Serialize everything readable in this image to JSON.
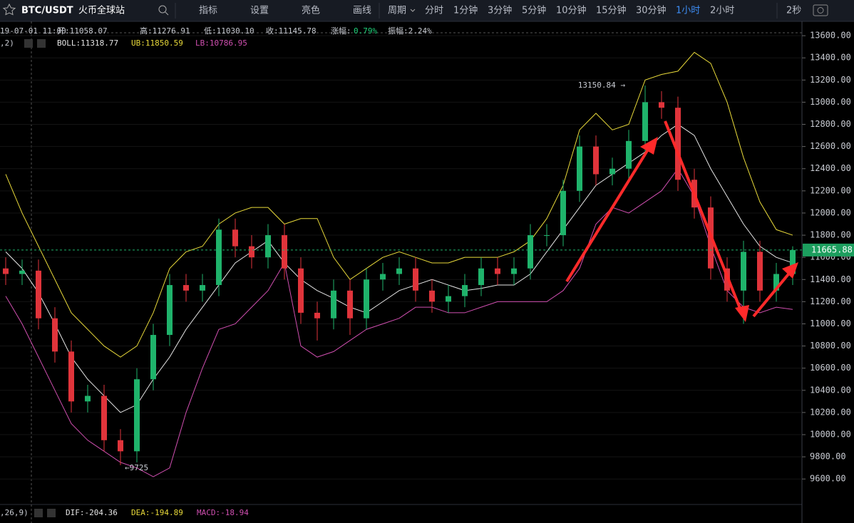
{
  "toolbar": {
    "symbol": "BTC/USDT",
    "exchange": "火币全球站",
    "tools": [
      "指标",
      "设置",
      "亮色",
      "画线"
    ],
    "period_label": "周期",
    "periods": [
      "分时",
      "1分钟",
      "3分钟",
      "5分钟",
      "10分钟",
      "15分钟",
      "30分钟",
      "1小时",
      "2小时"
    ],
    "active_period": "1小时",
    "refresh": "2秒"
  },
  "info": {
    "time": "19-07-01 11:00",
    "open": "开:11058.07",
    "high": "高:11276.91",
    "low": "低:11030.10",
    "close": "收:11145.78",
    "change_label": "涨幅:",
    "change": "0.79%",
    "amplitude": "振幅:2.24%"
  },
  "boll_legend": {
    "params": ",2)",
    "boll": "BOLL:11318.77",
    "ub": "UB:11850.59",
    "lb": "LB:10786.95"
  },
  "macd_legend": {
    "params": ",26,9)",
    "dif": "DIF:-204.36",
    "dea": "DEA:-194.89",
    "macd": "MACD:-18.94"
  },
  "chart": {
    "type": "candlestick",
    "open": [
      11500,
      11450,
      11480,
      11050,
      10750,
      10300,
      10350,
      9950,
      9850,
      10500,
      10900,
      11350,
      11300,
      11350,
      11850,
      11700,
      11600,
      11800,
      11500,
      11100,
      11050,
      11300,
      11050,
      11400,
      11450,
      11500,
      11300,
      11200,
      11250,
      11350,
      11500,
      11450,
      11500,
      11800,
      11800,
      12200,
      12600,
      12350,
      12400,
      12650,
      13000,
      12950,
      12300,
      12050,
      11500,
      11300,
      11650,
      11300,
      11450
    ],
    "high": [
      11600,
      11580,
      11580,
      11150,
      10850,
      10450,
      10450,
      10050,
      10600,
      11000,
      11450,
      11450,
      11450,
      11950,
      11950,
      11800,
      11900,
      11900,
      11600,
      11200,
      11400,
      11400,
      11500,
      11550,
      11600,
      11600,
      11400,
      11350,
      11450,
      11600,
      11600,
      11600,
      11900,
      11900,
      12300,
      12700,
      12700,
      12500,
      12750,
      13150.84,
      13100,
      13050,
      12400,
      12150,
      11600,
      11750,
      11750,
      11550,
      11700
    ],
    "low": [
      11350,
      11350,
      10950,
      10650,
      10200,
      10200,
      9850,
      9725,
      9750,
      10400,
      10800,
      11200,
      11200,
      11250,
      11600,
      11500,
      11500,
      11400,
      11000,
      10850,
      10950,
      10900,
      10950,
      11300,
      11350,
      11200,
      11100,
      11100,
      11150,
      11250,
      11350,
      11350,
      11400,
      11700,
      11700,
      12100,
      12250,
      12250,
      12300,
      12550,
      12850,
      12200,
      11950,
      11400,
      11200,
      11000,
      11200,
      11200,
      11350
    ],
    "close": [
      11450,
      11480,
      11050,
      10750,
      10300,
      10350,
      9950,
      9850,
      10500,
      10900,
      11350,
      11300,
      11350,
      11850,
      11700,
      11600,
      11800,
      11500,
      11100,
      11050,
      11300,
      11050,
      11400,
      11450,
      11500,
      11300,
      11200,
      11250,
      11350,
      11500,
      11450,
      11500,
      11800,
      11800,
      12200,
      12600,
      12350,
      12400,
      12650,
      13000,
      12950,
      12300,
      12050,
      11500,
      11300,
      11650,
      11300,
      11450,
      11665.88
    ],
    "series": [
      {
        "name": "BOLL",
        "color": "#e6e6e6",
        "values": [
          11650,
          11500,
          11280,
          11000,
          10700,
          10500,
          10350,
          10200,
          10270,
          10500,
          10700,
          10950,
          11150,
          11350,
          11550,
          11650,
          11750,
          11550,
          11400,
          11300,
          11230,
          11150,
          11100,
          11200,
          11300,
          11350,
          11400,
          11350,
          11300,
          11320,
          11350,
          11350,
          11450,
          11650,
          11850,
          12050,
          12250,
          12350,
          12450,
          12550,
          12700,
          12800,
          12700,
          12400,
          12150,
          11900,
          11700,
          11600,
          11550
        ]
      },
      {
        "name": "UB",
        "color": "#e8d93a",
        "values": [
          12350,
          12000,
          11700,
          11400,
          11100,
          10950,
          10800,
          10700,
          10800,
          11100,
          11500,
          11650,
          11700,
          11900,
          12000,
          12050,
          12050,
          11900,
          11950,
          11950,
          11600,
          11400,
          11500,
          11600,
          11650,
          11600,
          11550,
          11550,
          11600,
          11600,
          11600,
          11650,
          11750,
          11950,
          12250,
          12750,
          12900,
          12750,
          12800,
          13200,
          13250,
          13280,
          13450,
          13350,
          13000,
          12500,
          12100,
          11850,
          11800
        ]
      },
      {
        "name": "LB",
        "color": "#d04fb0",
        "values": [
          11250,
          11000,
          10700,
          10400,
          10100,
          9950,
          9850,
          9750,
          9700,
          9620,
          9700,
          10200,
          10600,
          10950,
          11000,
          11150,
          11300,
          11550,
          10800,
          10700,
          10750,
          10850,
          10950,
          11000,
          11050,
          11150,
          11150,
          11100,
          11100,
          11150,
          11200,
          11200,
          11200,
          11200,
          11300,
          11500,
          11900,
          12050,
          12000,
          12100,
          12200,
          12400,
          12150,
          11700,
          11300,
          11150,
          11100,
          11150,
          11130
        ]
      }
    ],
    "up_color": "#1fb36b",
    "down_color": "#e0343b",
    "ylim": [
      9370,
      13710
    ],
    "yticks": [
      {
        "value": 9600,
        "label": "9600.00"
      },
      {
        "value": 9800,
        "label": "9800.00"
      },
      {
        "value": 10000,
        "label": "10000.00"
      },
      {
        "value": 10200,
        "label": "10200.00"
      },
      {
        "value": 10400,
        "label": "10400.00"
      },
      {
        "value": 10600,
        "label": "10600.00"
      },
      {
        "value": 10800,
        "label": "10800.00"
      },
      {
        "value": 11000,
        "label": "11000.00"
      },
      {
        "value": 11200,
        "label": "11200.00"
      },
      {
        "value": 11400,
        "label": "11400.00"
      },
      {
        "value": 11600,
        "label": "11600.00"
      },
      {
        "value": 11800,
        "label": "11800.00"
      },
      {
        "value": 12000,
        "label": "12000.00"
      },
      {
        "value": 12200,
        "label": "12200.00"
      },
      {
        "value": 12400,
        "label": "12400.00"
      },
      {
        "value": 12600,
        "label": "12600.00"
      },
      {
        "value": 12800,
        "label": "12800.00"
      },
      {
        "value": 13000,
        "label": "13000.00"
      },
      {
        "value": 13200,
        "label": "13200.00"
      },
      {
        "value": 13400,
        "label": "13400.00"
      },
      {
        "value": 13600,
        "label": "13600.00"
      }
    ],
    "last_price": "11665.88",
    "annotations": [
      {
        "text": "13150.84 →",
        "index": 39
      },
      {
        "text": "←9725",
        "index": 7
      }
    ]
  }
}
